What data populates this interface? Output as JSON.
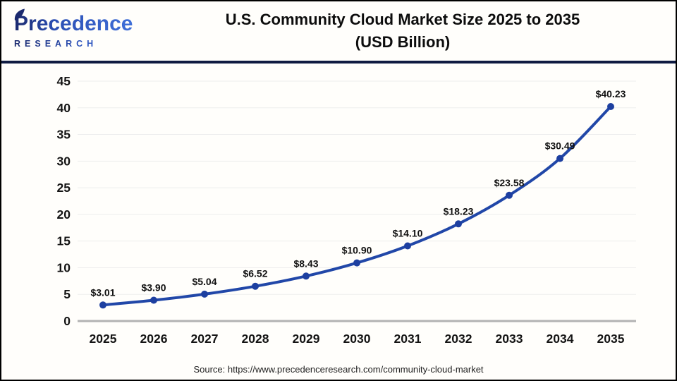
{
  "header": {
    "logo_p": "P",
    "logo_rest": "recedence",
    "logo_sub": "RESEARCH",
    "title_line1": "U.S. Community Cloud Market Size 2025 to 2035",
    "title_line2": "(USD Billion)"
  },
  "chart_data": {
    "type": "line",
    "title": "U.S. Community Cloud Market Size 2025 to 2035 (USD Billion)",
    "categories": [
      "2025",
      "2026",
      "2027",
      "2028",
      "2029",
      "2030",
      "2031",
      "2032",
      "2033",
      "2034",
      "2035"
    ],
    "values": [
      3.01,
      3.9,
      5.04,
      6.52,
      8.43,
      10.9,
      14.1,
      18.23,
      23.58,
      30.49,
      40.23
    ],
    "point_labels": [
      "$3.01",
      "$3.90",
      "$5.04",
      "$6.52",
      "$8.43",
      "$10.90",
      "$14.10",
      "$18.23",
      "$23.58",
      "$30.49",
      "$40.23"
    ],
    "xlabel": "",
    "ylabel": "",
    "ylim": [
      0,
      45
    ],
    "ytick_step": 5,
    "grid": true,
    "legend": false,
    "line_color": "#2147a8",
    "marker_color": "#1d3fa0",
    "grid_color": "#ededed",
    "axis_color": "#b3b3b3"
  },
  "footer": {
    "source": "Source: https://www.precedenceresearch.com/community-cloud-market"
  }
}
